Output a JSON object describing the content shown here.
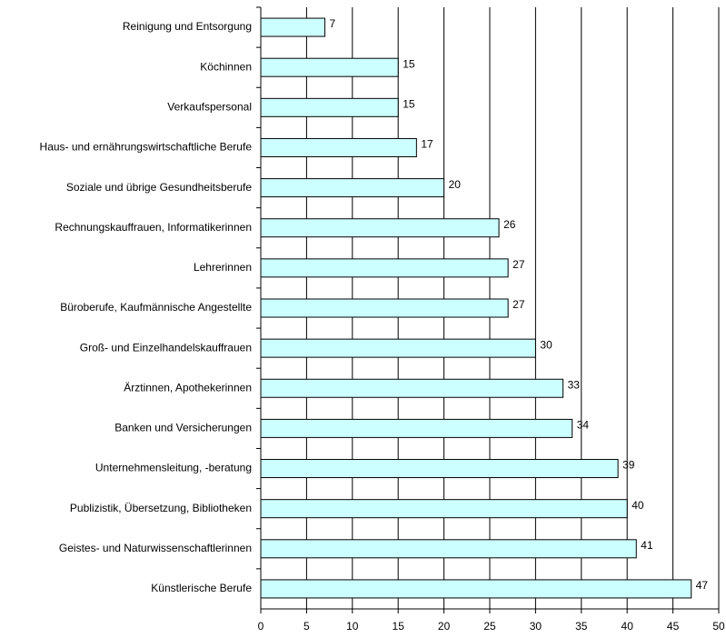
{
  "chart_data": {
    "type": "bar",
    "orientation": "horizontal",
    "categories": [
      "Reinigung und Entsorgung",
      "Köchinnen",
      "Verkaufspersonal",
      "Haus- und ernährungswirtschaftliche Berufe",
      "Soziale und übrige Gesundheitsberufe",
      "Rechnungskauffrauen, Informatikerinnen",
      "Lehrerinnen",
      "Büroberufe, Kaufmännische Angestellte",
      "Groß- und Einzelhandelskauffrauen",
      "Ärztinnen, Apothekerinnen",
      "Banken und Versicherungen",
      "Unternehmensleitung, -beratung",
      "Publizistik, Übersetzung, Bibliotheken",
      "Geistes- und Naturwissenschaftlerinnen",
      "Künstlerische Berufe"
    ],
    "values": [
      7,
      15,
      15,
      17,
      20,
      26,
      27,
      27,
      30,
      33,
      34,
      39,
      40,
      41,
      47
    ],
    "color": "#ccffff",
    "xlim": [
      0,
      50
    ],
    "xticks": [
      0,
      5,
      10,
      15,
      20,
      25,
      30,
      35,
      40,
      45,
      50
    ],
    "grid": true
  }
}
